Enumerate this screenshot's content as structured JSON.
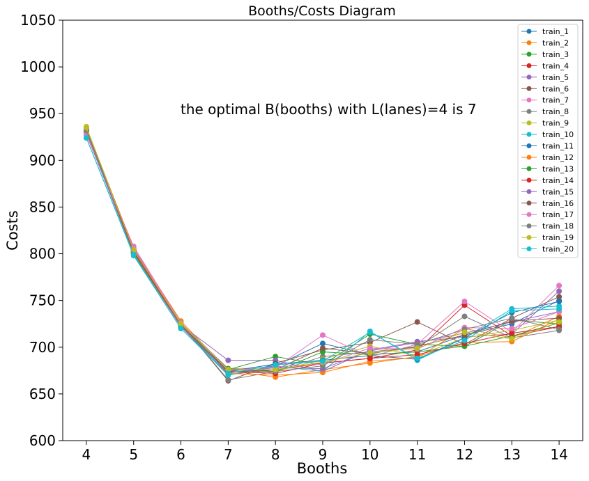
{
  "chart_data": {
    "type": "line",
    "title": "Booths/Costs Diagram",
    "xlabel": "Booths",
    "ylabel": "Costs",
    "annotation": "the optimal B(booths) with L(lanes)=4 is 7",
    "x": [
      4,
      5,
      6,
      7,
      8,
      9,
      10,
      11,
      12,
      13,
      14
    ],
    "xlim": [
      3.5,
      14.5
    ],
    "ylim": [
      600,
      1050
    ],
    "yticks": [
      600,
      650,
      700,
      750,
      800,
      850,
      900,
      950,
      1000,
      1050
    ],
    "grid": false,
    "legend_position": "top-right",
    "series": [
      {
        "name": "train_1",
        "color": "#1f77b4",
        "values": [
          933,
          803,
          726,
          674,
          680,
          704,
          692,
          695,
          713,
          725,
          750
        ]
      },
      {
        "name": "train_2",
        "color": "#ff7f0e",
        "values": [
          935,
          806,
          728,
          675,
          668,
          676,
          683,
          690,
          705,
          706,
          730
        ]
      },
      {
        "name": "train_3",
        "color": "#2ca02c",
        "values": [
          931,
          802,
          724,
          676,
          690,
          681,
          714,
          703,
          701,
          729,
          725
        ]
      },
      {
        "name": "train_4",
        "color": "#d62728",
        "values": [
          928,
          803,
          722,
          671,
          676,
          683,
          688,
          697,
          745,
          712,
          722
        ]
      },
      {
        "name": "train_5",
        "color": "#9467bd",
        "values": [
          929,
          805,
          724,
          686,
          686,
          674,
          697,
          706,
          711,
          714,
          760
        ]
      },
      {
        "name": "train_6",
        "color": "#8c564b",
        "values": [
          930,
          804,
          725,
          664,
          683,
          697,
          705,
          727,
          703,
          731,
          754
        ]
      },
      {
        "name": "train_7",
        "color": "#e377c2",
        "values": [
          927,
          808,
          726,
          677,
          678,
          713,
          690,
          703,
          749,
          716,
          766
        ]
      },
      {
        "name": "train_8",
        "color": "#7f7f7f",
        "values": [
          933,
          802,
          725,
          665,
          674,
          690,
          695,
          700,
          733,
          710,
          718
        ]
      },
      {
        "name": "train_9",
        "color": "#bcbd22",
        "values": [
          936,
          804,
          726,
          676,
          674,
          687,
          701,
          691,
          710,
          718,
          729
        ]
      },
      {
        "name": "train_10",
        "color": "#17becf",
        "values": [
          924,
          798,
          720,
          670,
          680,
          674,
          717,
          686,
          710,
          741,
          744
        ]
      },
      {
        "name": "train_11",
        "color": "#1f77b4",
        "values": [
          932,
          804,
          722,
          674,
          682,
          686,
          691,
          687,
          710,
          737,
          749
        ]
      },
      {
        "name": "train_12",
        "color": "#ff7f0e",
        "values": [
          930,
          801,
          725,
          672,
          670,
          673,
          685,
          689,
          720,
          710,
          733
        ]
      },
      {
        "name": "train_13",
        "color": "#2ca02c",
        "values": [
          931,
          801,
          723,
          677,
          674,
          695,
          692,
          695,
          701,
          712,
          726
        ]
      },
      {
        "name": "train_14",
        "color": "#d62728",
        "values": [
          930,
          803,
          723,
          674,
          672,
          683,
          688,
          692,
          704,
          715,
          722
        ]
      },
      {
        "name": "train_15",
        "color": "#9467bd",
        "values": [
          929,
          800,
          722,
          673,
          678,
          677,
          696,
          705,
          715,
          727,
          738
        ]
      },
      {
        "name": "train_16",
        "color": "#8c564b",
        "values": [
          934,
          805,
          724,
          673,
          676,
          699,
          693,
          701,
          713,
          728,
          731
        ]
      },
      {
        "name": "train_17",
        "color": "#e377c2",
        "values": [
          929,
          806,
          726,
          675,
          679,
          682,
          699,
          698,
          721,
          720,
          738
        ]
      },
      {
        "name": "train_18",
        "color": "#7f7f7f",
        "values": [
          932,
          800,
          723,
          673,
          674,
          680,
          708,
          703,
          719,
          731,
          719
        ]
      },
      {
        "name": "train_19",
        "color": "#bcbd22",
        "values": [
          935,
          804,
          725,
          676,
          676,
          684,
          694,
          699,
          716,
          709,
          727
        ]
      },
      {
        "name": "train_20",
        "color": "#17becf",
        "values": [
          924,
          799,
          720,
          672,
          681,
          685,
          716,
          688,
          707,
          739,
          741
        ]
      }
    ]
  }
}
